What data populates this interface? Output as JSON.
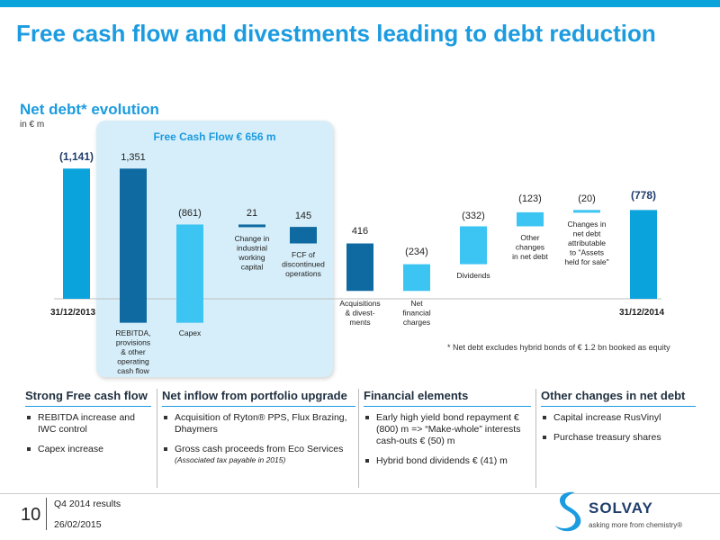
{
  "slide": {
    "title": "Free cash flow and divestments leading to debt reduction",
    "subtitle": "Net debt* evolution",
    "unit": "in € m",
    "fcf_box_label": "Free Cash Flow € 656  m",
    "footnote": "* Net debt excludes hybrid bonds of € 1.2 bn booked as equity"
  },
  "colors": {
    "accent": "#1b9be0",
    "dark_bar": "#0f6aa1",
    "light_bar": "#3cc4f2",
    "total_bar": "#0aa3dc",
    "box": "#d6eef9"
  },
  "chart_data": {
    "type": "waterfall",
    "bars": [
      {
        "label": "31/12/2013",
        "value_label": "(1,141)",
        "value": -1141,
        "kind": "total"
      },
      {
        "label": "REBITDA, provisions & other operating cash flow",
        "value_label": "1,351",
        "value": 1351,
        "kind": "decrease"
      },
      {
        "label": "Capex",
        "value_label": "(861)",
        "value": -861,
        "kind": "increase"
      },
      {
        "label": "Change in industrial working capital",
        "value_label": "21",
        "value": 21,
        "kind": "decrease"
      },
      {
        "label": "FCF of discontinued operations",
        "value_label": "145",
        "value": 145,
        "kind": "decrease"
      },
      {
        "label": "Acquisitions & divest-ments",
        "value_label": "416",
        "value": 416,
        "kind": "decrease"
      },
      {
        "label": "Net financial charges",
        "value_label": "(234)",
        "value": -234,
        "kind": "increase"
      },
      {
        "label": "Dividends",
        "value_label": "(332)",
        "value": -332,
        "kind": "increase"
      },
      {
        "label": "Other changes in net debt",
        "value_label": "(123)",
        "value": -123,
        "kind": "increase"
      },
      {
        "label": "Changes in net debt attributable to \"Assets held for sale\"",
        "value_label": "(20)",
        "value": -20,
        "kind": "increase"
      },
      {
        "label": "31/12/2014",
        "value_label": "(778)",
        "value": -778,
        "kind": "total"
      }
    ]
  },
  "panels": [
    {
      "heading": "Strong Free cash flow",
      "items": [
        {
          "text": "REBITDA increase and IWC control"
        },
        {
          "text": "Capex increase"
        }
      ]
    },
    {
      "heading": "Net inflow from portfolio upgrade",
      "items": [
        {
          "text": "Acquisition of Ryton® PPS, Flux Brazing, Dhaymers"
        },
        {
          "text": "Gross cash proceeds from Eco Services",
          "note": "(Associated tax payable in 2015)"
        }
      ]
    },
    {
      "heading": "Financial elements",
      "items": [
        {
          "text": "Early high yield bond repayment € (800) m => “Make-whole” interests cash-outs € (50) m"
        },
        {
          "text": "Hybrid bond dividends € (41) m"
        }
      ]
    },
    {
      "heading": "Other changes in net debt",
      "items": [
        {
          "text": "Capital increase RusVinyl"
        },
        {
          "text": "Purchase treasury shares"
        }
      ]
    }
  ],
  "footer": {
    "page_number": "10",
    "line1": "Q4 2014 results",
    "line2": "26/02/2015",
    "logo_name": "SOLVAY",
    "logo_tagline": "asking more from chemistry®",
    "logo_icon": "solvay-s-logo-icon"
  }
}
